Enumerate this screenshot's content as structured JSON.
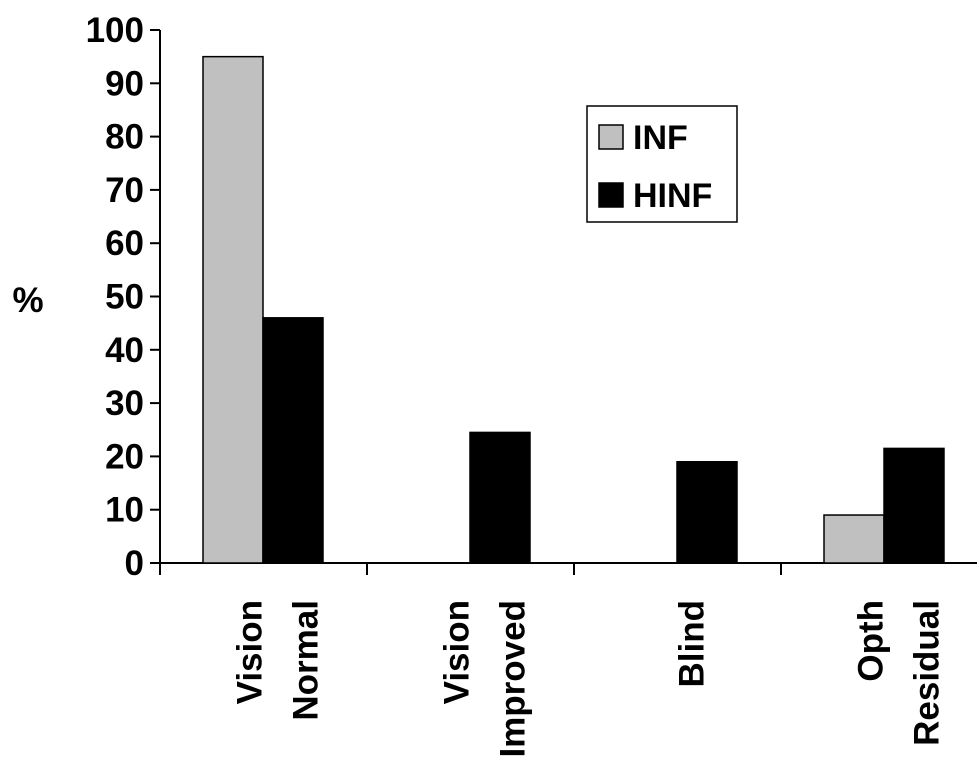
{
  "chart_data": {
    "type": "bar",
    "ylabel": "%",
    "xlabel": "",
    "ylim": [
      0,
      100
    ],
    "yticks": [
      0,
      10,
      20,
      30,
      40,
      50,
      60,
      70,
      80,
      90,
      100
    ],
    "categories": [
      [
        "Vision",
        "Normal"
      ],
      [
        "Vision",
        "Improved"
      ],
      [
        "Blind"
      ],
      [
        "Opth",
        "Residual"
      ]
    ],
    "series": [
      {
        "name": "INF",
        "color": "#c0c0c0",
        "values": [
          95,
          0,
          0,
          9
        ]
      },
      {
        "name": "HINF",
        "color": "#000000",
        "values": [
          46,
          24.5,
          19,
          21.5
        ]
      }
    ],
    "legend_position": "top-right",
    "grid": false
  }
}
